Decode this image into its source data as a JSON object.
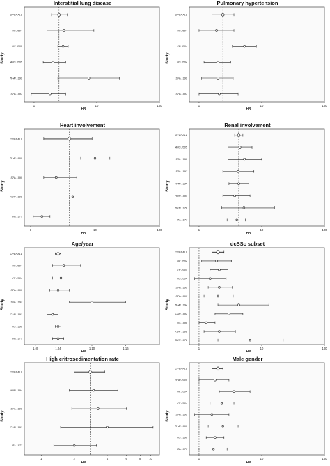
{
  "chart_data": [
    {
      "type": "forest",
      "title": "Interstitial lung disease",
      "ylabel": "Study",
      "xlabel": "HR",
      "scale": "log",
      "xlim": [
        0.7,
        100
      ],
      "ticks": [
        {
          "v": 1,
          "t": "1"
        },
        {
          "v": 10,
          "t": "10"
        },
        {
          "v": 100,
          "t": "100"
        }
      ],
      "ref": 2.5,
      "rows": [
        {
          "label": "OVERALL",
          "est": 2.5,
          "lo": 1.9,
          "hi": 3.4
        },
        {
          "label": "UK 2004",
          "est": 3.0,
          "lo": 1.6,
          "hi": 9.0
        },
        {
          "label": "US 2005",
          "est": 2.9,
          "lo": 2.4,
          "hi": 3.5
        },
        {
          "label": "AUS 2005",
          "est": 2.0,
          "lo": 1.4,
          "hi": 3.2
        },
        {
          "label": "THAI 1999",
          "est": 7.5,
          "lo": 2.4,
          "hi": 23.0
        },
        {
          "label": "SPA 1997",
          "est": 1.8,
          "lo": 0.9,
          "hi": 3.2
        }
      ]
    },
    {
      "type": "forest",
      "title": "Pulmonary hypertension",
      "ylabel": "Study",
      "xlabel": "HR",
      "scale": "log",
      "xlim": [
        0.7,
        100
      ],
      "ticks": [
        {
          "v": 1,
          "t": "1"
        },
        {
          "v": 10,
          "t": "10"
        },
        {
          "v": 100,
          "t": "100"
        }
      ],
      "ref": 2.4,
      "rows": [
        {
          "label": "OVERALL",
          "est": 2.4,
          "lo": 1.6,
          "hi": 3.6
        },
        {
          "label": "UK 2004",
          "est": 1.9,
          "lo": 1.0,
          "hi": 3.6
        },
        {
          "label": "FR 2004",
          "est": 5.3,
          "lo": 3.4,
          "hi": 8.2
        },
        {
          "label": "US 2004",
          "est": 2.0,
          "lo": 1.2,
          "hi": 3.2
        },
        {
          "label": "SPA 1999",
          "est": 2.0,
          "lo": 1.1,
          "hi": 3.5
        },
        {
          "label": "SPA 1997",
          "est": 2.1,
          "lo": 1.0,
          "hi": 4.2
        }
      ]
    },
    {
      "type": "forest",
      "title": "Heart involvement",
      "ylabel": "Study",
      "xlabel": "HR",
      "scale": "log",
      "xlim": [
        0.8,
        100
      ],
      "ticks": [
        {
          "v": 1,
          "t": "1"
        },
        {
          "v": 10,
          "t": "10"
        },
        {
          "v": 100,
          "t": "100"
        }
      ],
      "ref": 4.0,
      "rows": [
        {
          "label": "OVERALL",
          "est": 4.0,
          "lo": 1.6,
          "hi": 9.0
        },
        {
          "label": "THAI 1999",
          "est": 10.0,
          "lo": 6.0,
          "hi": 17.0
        },
        {
          "label": "SPA 1999",
          "est": 2.5,
          "lo": 1.6,
          "hi": 5.2
        },
        {
          "label": "KOR 1998",
          "est": 4.5,
          "lo": 1.8,
          "hi": 10.0
        },
        {
          "label": "ITA 1977",
          "est": 1.5,
          "lo": 1.1,
          "hi": 2.0
        }
      ]
    },
    {
      "type": "forest",
      "title": "Renal involvement",
      "ylabel": "Study",
      "xlabel": "HR",
      "scale": "log",
      "xlim": [
        0.7,
        100
      ],
      "ticks": [
        {
          "v": 1,
          "t": "1"
        },
        {
          "v": 10,
          "t": "10"
        },
        {
          "v": 100,
          "t": "100"
        }
      ],
      "ref": 4.3,
      "rows": [
        {
          "label": "OVERALL",
          "est": 4.3,
          "lo": 3.7,
          "hi": 5.0
        },
        {
          "label": "AUS 2005",
          "est": 4.5,
          "lo": 2.9,
          "hi": 7.0
        },
        {
          "label": "SPA 1999",
          "est": 5.3,
          "lo": 2.9,
          "hi": 10.0
        },
        {
          "label": "SPA 1997",
          "est": 4.2,
          "lo": 2.4,
          "hi": 7.5
        },
        {
          "label": "THAI 1994",
          "est": 4.3,
          "lo": 3.0,
          "hi": 6.2
        },
        {
          "label": "HUN 1994",
          "est": 3.7,
          "lo": 2.4,
          "hi": 6.5
        },
        {
          "label": "DEN 1978",
          "est": 5.2,
          "lo": 2.3,
          "hi": 16.0
        },
        {
          "label": "ITA 1977",
          "est": 4.0,
          "lo": 2.8,
          "hi": 5.5
        }
      ]
    },
    {
      "type": "forest",
      "title": "Age/year",
      "ylabel": "Study",
      "xlabel": "HR",
      "scale": "linear",
      "xlim": [
        0.98,
        1.22
      ],
      "ticks": [
        {
          "v": 1.0,
          "t": "1,00"
        },
        {
          "v": 1.04,
          "t": "1,04"
        },
        {
          "v": 1.1,
          "t": "1,10"
        },
        {
          "v": 1.16,
          "t": "1,16"
        }
      ],
      "ref": 1.04,
      "rows": [
        {
          "label": "OVERALL",
          "est": 1.04,
          "lo": 1.035,
          "hi": 1.045
        },
        {
          "label": "UK 2004",
          "est": 1.05,
          "lo": 1.03,
          "hi": 1.08
        },
        {
          "label": "FR 2004",
          "est": 1.045,
          "lo": 1.03,
          "hi": 1.065
        },
        {
          "label": "SPA 1999",
          "est": 1.04,
          "lo": 1.025,
          "hi": 1.06
        },
        {
          "label": "SPA 1997",
          "est": 1.1,
          "lo": 1.06,
          "hi": 1.16
        },
        {
          "label": "CAN 1991",
          "est": 1.03,
          "lo": 1.02,
          "hi": 1.04
        },
        {
          "label": "US 1990",
          "est": 1.04,
          "lo": 1.035,
          "hi": 1.045
        },
        {
          "label": "ITA 1977",
          "est": 1.04,
          "lo": 1.03,
          "hi": 1.05
        }
      ]
    },
    {
      "type": "forest",
      "title": "dcSSc subset",
      "ylabel": "Study",
      "xlabel": "HR",
      "scale": "log",
      "xlim": [
        0.7,
        100
      ],
      "ticks": [
        {
          "v": 1,
          "t": "1"
        },
        {
          "v": 10,
          "t": "10"
        },
        {
          "v": 100,
          "t": "100"
        }
      ],
      "ref": 1.0,
      "rows": [
        {
          "label": "OVERALL",
          "est": 2.0,
          "lo": 1.6,
          "hi": 2.5
        },
        {
          "label": "UK 2004",
          "est": 1.9,
          "lo": 1.1,
          "hi": 3.3
        },
        {
          "label": "FR 2004",
          "est": 2.1,
          "lo": 1.5,
          "hi": 2.9
        },
        {
          "label": "US 2004",
          "est": 1.5,
          "lo": 0.85,
          "hi": 2.7
        },
        {
          "label": "SPA 1999",
          "est": 2.1,
          "lo": 1.4,
          "hi": 3.4
        },
        {
          "label": "SPA 1997",
          "est": 2.0,
          "lo": 1.2,
          "hi": 3.5
        },
        {
          "label": "THAI 1994",
          "est": 4.3,
          "lo": 2.0,
          "hi": 13.0
        },
        {
          "label": "CAN 1991",
          "est": 3.0,
          "lo": 1.8,
          "hi": 5.0
        },
        {
          "label": "US 1990",
          "est": 1.3,
          "lo": 1.0,
          "hi": 1.8
        },
        {
          "label": "KOR 1988",
          "est": 2.1,
          "lo": 1.2,
          "hi": 3.8
        },
        {
          "label": "DEN 1978",
          "est": 6.5,
          "lo": 2.0,
          "hi": 22.0
        }
      ]
    },
    {
      "type": "forest",
      "title": "High eritrosedimentation rate",
      "ylabel": "Study",
      "xlabel": "HR",
      "scale": "log",
      "xlim": [
        0.7,
        12
      ],
      "ticks": [
        {
          "v": 1,
          "t": "1"
        },
        {
          "v": 2,
          "t": "2"
        },
        {
          "v": 4,
          "t": "4"
        },
        {
          "v": 6,
          "t": "6"
        },
        {
          "v": 8,
          "t": "8"
        },
        {
          "v": 10,
          "t": "10"
        }
      ],
      "ref": 2.8,
      "rows": [
        {
          "label": "OVERALL",
          "est": 2.8,
          "lo": 2.0,
          "hi": 3.8
        },
        {
          "label": "HUN 1994",
          "est": 3.0,
          "lo": 1.8,
          "hi": 5.0
        },
        {
          "label": "SPA 1999",
          "est": 3.3,
          "lo": 1.9,
          "hi": 6.0
        },
        {
          "label": "CAN 1991",
          "est": 4.0,
          "lo": 1.5,
          "hi": 10.5
        },
        {
          "label": "ITA 1977",
          "est": 2.0,
          "lo": 1.3,
          "hi": 3.2
        }
      ]
    },
    {
      "type": "forest",
      "title": "Male gender",
      "ylabel": "Study",
      "xlabel": "HR",
      "scale": "log",
      "xlim": [
        0.7,
        100
      ],
      "ticks": [
        {
          "v": 1,
          "t": "1"
        },
        {
          "v": 10,
          "t": "10"
        },
        {
          "v": 100,
          "t": "100"
        }
      ],
      "ref": 1.0,
      "rows": [
        {
          "label": "OVERALL",
          "est": 2.0,
          "lo": 1.6,
          "hi": 2.4
        },
        {
          "label": "THAI 2005",
          "est": 1.8,
          "lo": 1.0,
          "hi": 3.0
        },
        {
          "label": "UK 2004",
          "est": 3.6,
          "lo": 2.1,
          "hi": 6.5
        },
        {
          "label": "FR 2004",
          "est": 2.3,
          "lo": 1.5,
          "hi": 3.6
        },
        {
          "label": "SPA 1999",
          "est": 1.6,
          "lo": 0.85,
          "hi": 3.0
        },
        {
          "label": "THAI 1999",
          "est": 2.4,
          "lo": 1.4,
          "hi": 4.2
        },
        {
          "label": "US 1990",
          "est": 1.8,
          "lo": 1.3,
          "hi": 2.5
        },
        {
          "label": "ITA 1977",
          "est": 1.7,
          "lo": 1.0,
          "hi": 2.8
        }
      ]
    }
  ]
}
